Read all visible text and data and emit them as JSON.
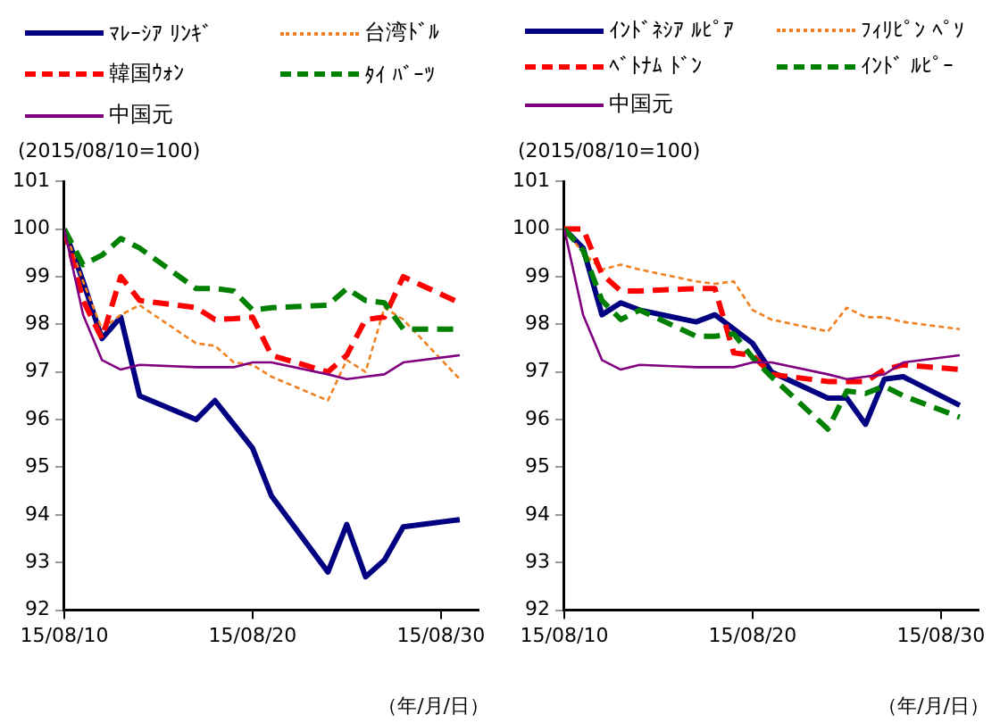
{
  "chart_data": [
    {
      "type": "line",
      "ylabel": "(2015/08/10=100)",
      "xlabel": "（年/月/日）",
      "legend": "top",
      "grid": false,
      "x": [
        "2015-08-10",
        "2015-08-11",
        "2015-08-12",
        "2015-08-13",
        "2015-08-14",
        "2015-08-17",
        "2015-08-18",
        "2015-08-19",
        "2015-08-20",
        "2015-08-21",
        "2015-08-24",
        "2015-08-25",
        "2015-08-26",
        "2015-08-27",
        "2015-08-28",
        "2015-08-31"
      ],
      "xlim": [
        "2015-08-10",
        "2015-09-01"
      ],
      "xticks": [
        {
          "value": "2015-08-10",
          "label": "15/08/10"
        },
        {
          "value": "2015-08-20",
          "label": "15/08/20"
        },
        {
          "value": "2015-08-30",
          "label": "15/08/30"
        }
      ],
      "ylim": [
        92,
        101
      ],
      "yticks": [
        92,
        93,
        94,
        95,
        96,
        97,
        98,
        99,
        100,
        101
      ],
      "series": [
        {
          "name": "ﾏﾚｰｼｱ ﾘﾝｷﾞ",
          "color": "#000080",
          "line_style": "solid",
          "values": [
            100,
            98.9,
            97.7,
            98.15,
            96.5,
            96.0,
            96.4,
            95.9,
            95.4,
            94.4,
            92.8,
            93.8,
            92.7,
            93.05,
            93.75,
            93.9
          ]
        },
        {
          "name": "台湾ﾄﾞﾙ",
          "color": "#f08020",
          "line_style": "dotted",
          "values": [
            100,
            98.9,
            97.9,
            98.2,
            98.4,
            97.6,
            97.55,
            97.2,
            97.15,
            96.9,
            96.4,
            97.25,
            97.0,
            98.35,
            98.1,
            96.85
          ]
        },
        {
          "name": "韓国ｳｫﾝ",
          "color": "#ff0000",
          "line_style": "dashed",
          "values": [
            100,
            98.5,
            97.7,
            99.0,
            98.5,
            98.35,
            98.1,
            98.12,
            98.15,
            97.35,
            97.0,
            97.35,
            98.1,
            98.15,
            99.0,
            98.45
          ]
        },
        {
          "name": "ﾀｲ ﾊﾞｰﾂ",
          "color": "#008000",
          "line_style": "dashed",
          "values": [
            100,
            99.25,
            99.45,
            99.8,
            99.6,
            98.75,
            98.75,
            98.7,
            98.3,
            98.35,
            98.4,
            98.75,
            98.5,
            98.45,
            97.9,
            97.9
          ]
        },
        {
          "name": "中国元",
          "color": "#800080",
          "line_style": "solid",
          "values": [
            100,
            98.2,
            97.25,
            97.05,
            97.15,
            97.1,
            97.1,
            97.1,
            97.2,
            97.2,
            96.95,
            96.85,
            96.9,
            96.95,
            97.2,
            97.35
          ]
        }
      ]
    },
    {
      "type": "line",
      "ylabel": "(2015/08/10=100)",
      "xlabel": "（年/月/日）",
      "legend": "top",
      "grid": false,
      "x": [
        "2015-08-10",
        "2015-08-11",
        "2015-08-12",
        "2015-08-13",
        "2015-08-14",
        "2015-08-17",
        "2015-08-18",
        "2015-08-19",
        "2015-08-20",
        "2015-08-21",
        "2015-08-24",
        "2015-08-25",
        "2015-08-26",
        "2015-08-27",
        "2015-08-28",
        "2015-08-31"
      ],
      "xlim": [
        "2015-08-10",
        "2015-09-01"
      ],
      "xticks": [
        {
          "value": "2015-08-10",
          "label": "15/08/10"
        },
        {
          "value": "2015-08-20",
          "label": "15/08/20"
        },
        {
          "value": "2015-08-30",
          "label": "15/08/30"
        }
      ],
      "ylim": [
        92,
        101
      ],
      "yticks": [
        92,
        93,
        94,
        95,
        96,
        97,
        98,
        99,
        100,
        101
      ],
      "series": [
        {
          "name": "ｲﾝﾄﾞﾈｼｱ ﾙﾋﾟｱ",
          "color": "#000080",
          "line_style": "solid",
          "values": [
            100,
            99.6,
            98.2,
            98.45,
            98.3,
            98.05,
            98.2,
            97.9,
            97.6,
            97.0,
            96.45,
            96.45,
            95.9,
            96.85,
            96.9,
            96.3
          ]
        },
        {
          "name": "ﾌｨﾘﾋﾟﾝ ﾍﾟｿ",
          "color": "#f08020",
          "line_style": "dotted",
          "values": [
            100,
            99.5,
            99.15,
            99.25,
            99.15,
            98.9,
            98.85,
            98.9,
            98.3,
            98.1,
            97.85,
            98.35,
            98.15,
            98.15,
            98.05,
            97.9
          ]
        },
        {
          "name": "ﾍﾞﾄﾅﾑ ﾄﾞﾝ",
          "color": "#ff0000",
          "line_style": "dashed",
          "values": [
            100,
            100,
            99.05,
            98.7,
            98.7,
            98.75,
            98.75,
            97.4,
            97.35,
            96.95,
            96.8,
            96.8,
            96.8,
            97.05,
            97.15,
            97.05
          ]
        },
        {
          "name": "ｲﾝﾄﾞ ﾙﾋﾟｰ",
          "color": "#008000",
          "line_style": "dashed",
          "values": [
            100,
            99.55,
            98.5,
            98.1,
            98.3,
            97.75,
            97.75,
            97.8,
            97.3,
            96.9,
            95.8,
            96.6,
            96.55,
            96.7,
            96.5,
            96.05
          ]
        },
        {
          "name": "中国元",
          "color": "#800080",
          "line_style": "solid",
          "values": [
            100,
            98.2,
            97.25,
            97.05,
            97.15,
            97.1,
            97.1,
            97.1,
            97.2,
            97.2,
            96.95,
            96.85,
            96.9,
            96.95,
            97.2,
            97.35
          ]
        }
      ]
    }
  ]
}
